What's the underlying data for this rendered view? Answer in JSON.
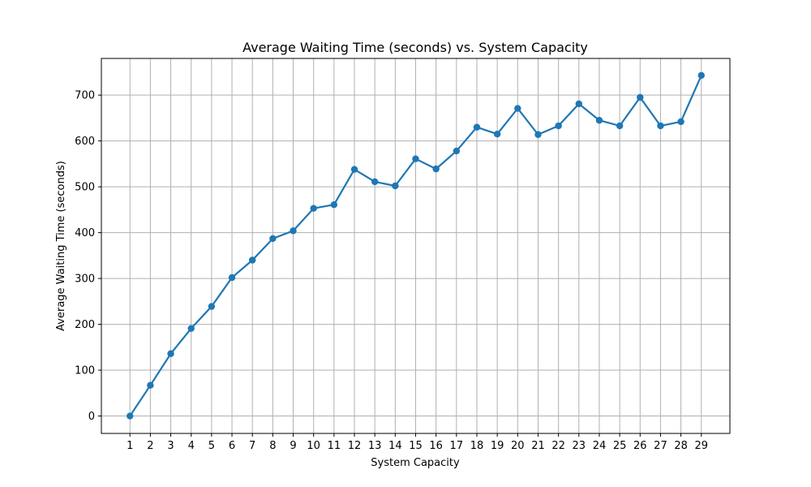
{
  "chart_data": {
    "type": "line",
    "title": "Average Waiting Time (seconds) vs. System Capacity",
    "xlabel": "System Capacity",
    "ylabel": "Average Waiting Time (seconds)",
    "x": [
      1,
      2,
      3,
      4,
      5,
      6,
      7,
      8,
      9,
      10,
      11,
      12,
      13,
      14,
      15,
      16,
      17,
      18,
      19,
      20,
      21,
      22,
      23,
      24,
      25,
      26,
      27,
      28,
      29
    ],
    "xlim": [
      -0.4,
      30.4
    ],
    "ylim": [
      -38,
      780
    ],
    "yticks": [
      0,
      100,
      200,
      300,
      400,
      500,
      600,
      700
    ],
    "grid": true,
    "series": [
      {
        "color": "#1f77b4",
        "marker": "circle",
        "values": [
          0,
          67,
          136,
          191,
          239,
          302,
          340,
          387,
          404,
          453,
          461,
          538,
          511,
          502,
          561,
          539,
          578,
          630,
          615,
          671,
          614,
          633,
          681,
          645,
          633,
          695,
          633,
          642,
          743
        ]
      }
    ]
  }
}
